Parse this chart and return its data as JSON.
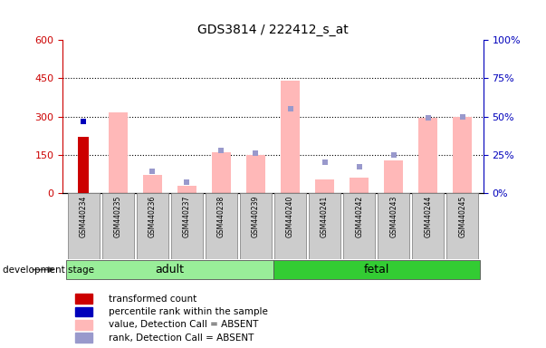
{
  "title": "GDS3814 / 222412_s_at",
  "samples": [
    "GSM440234",
    "GSM440235",
    "GSM440236",
    "GSM440237",
    "GSM440238",
    "GSM440239",
    "GSM440240",
    "GSM440241",
    "GSM440242",
    "GSM440243",
    "GSM440244",
    "GSM440245"
  ],
  "transformed_count": [
    220,
    0,
    0,
    0,
    0,
    0,
    0,
    0,
    0,
    0,
    0,
    0
  ],
  "percentile_rank": [
    47,
    0,
    0,
    0,
    0,
    0,
    0,
    0,
    0,
    0,
    0,
    0
  ],
  "absent_value": [
    0,
    315,
    70,
    30,
    160,
    148,
    440,
    55,
    60,
    128,
    295,
    300
  ],
  "absent_rank_pct": [
    0,
    0,
    14,
    7,
    28,
    26,
    55,
    20,
    17,
    25,
    49,
    50
  ],
  "has_transformed": [
    true,
    false,
    false,
    false,
    false,
    false,
    false,
    false,
    false,
    false,
    false,
    false
  ],
  "has_absent": [
    false,
    true,
    true,
    true,
    true,
    true,
    true,
    true,
    true,
    true,
    true,
    true
  ],
  "ylim_left": [
    0,
    600
  ],
  "ylim_right": [
    0,
    100
  ],
  "yticks_left": [
    0,
    150,
    300,
    450,
    600
  ],
  "yticks_right": [
    0,
    25,
    50,
    75,
    100
  ],
  "ytick_labels_right": [
    "0%",
    "25%",
    "50%",
    "75%",
    "100%"
  ],
  "bar_color_red": "#cc0000",
  "bar_color_pink": "#ffb8b8",
  "dot_color_blue": "#0000bb",
  "dot_color_lightblue": "#9999cc",
  "adult_bg": "#99ee99",
  "fetal_bg": "#33cc33",
  "tick_label_color_left": "#cc0000",
  "tick_label_color_right": "#0000bb",
  "legend_items": [
    {
      "label": "transformed count",
      "color": "#cc0000"
    },
    {
      "label": "percentile rank within the sample",
      "color": "#0000bb"
    },
    {
      "label": "value, Detection Call = ABSENT",
      "color": "#ffb8b8"
    },
    {
      "label": "rank, Detection Call = ABSENT",
      "color": "#9999cc"
    }
  ],
  "dev_stage_label": "development stage",
  "sample_bg_color": "#cccccc",
  "figsize": [
    6.03,
    3.84
  ],
  "dpi": 100,
  "n_adult": 6,
  "n_fetal": 6
}
